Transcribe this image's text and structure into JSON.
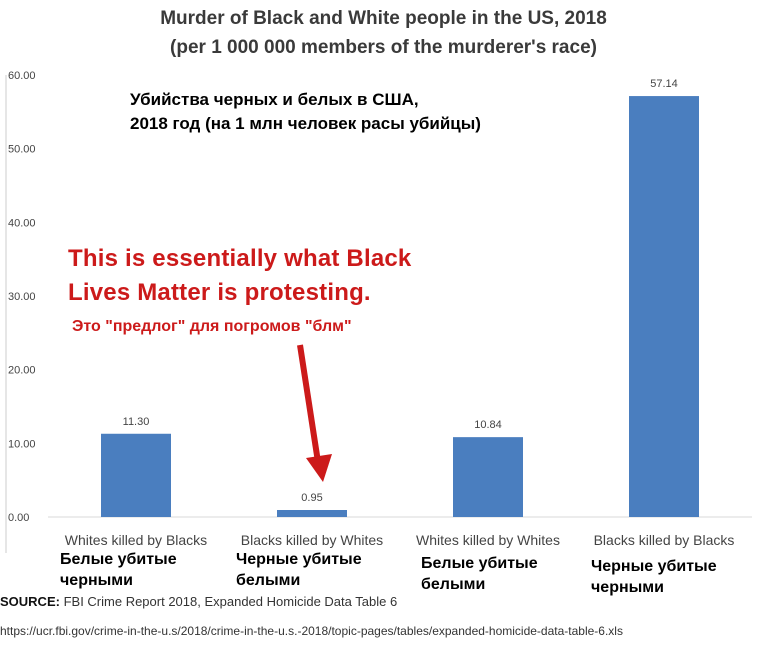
{
  "chart_data": {
    "type": "bar",
    "title": "Murder of Black and White people in the US, 2018",
    "subtitle": "(per 1 000 000 members of the murderer's race)",
    "categories": [
      "Whites killed by Blacks",
      "Blacks killed by Whites",
      "Whites killed by Whites",
      "Blacks killed by Blacks"
    ],
    "values": [
      11.3,
      0.95,
      10.84,
      57.14
    ],
    "value_labels": [
      "11.30",
      "0.95",
      "10.84",
      "57.14"
    ],
    "ylim": [
      0,
      60
    ],
    "yticks": [
      "0.00",
      "10.00",
      "20.00",
      "30.00",
      "40.00",
      "50.00",
      "60.00"
    ],
    "bar_color": "#4a7ebf",
    "grid": false
  },
  "overlay": {
    "ru_title_line1": "Убийства черных и белых в США,",
    "ru_title_line2": "2018 год (на 1 млн человек расы убийцы)",
    "red_line1": "This is essentially what Black",
    "red_line2": "Lives Matter is protesting.",
    "red_ru": "Это \"предлог\" для погромов \"блм\"",
    "red_color": "#cc1a1a",
    "ru_categories": [
      [
        "Белые убитые",
        "черными"
      ],
      [
        "Черные убитые",
        "белыми"
      ],
      [
        "Белые убитые",
        "белыми"
      ],
      [
        "Черные убитые",
        "черными"
      ]
    ]
  },
  "source": {
    "label": "SOURCE:",
    "text": "FBI Crime Report 2018, Expanded Homicide Data Table 6",
    "url": "https://ucr.fbi.gov/crime-in-the-u.s/2018/crime-in-the-u.s.-2018/topic-pages/tables/expanded-homicide-data-table-6.xls"
  }
}
